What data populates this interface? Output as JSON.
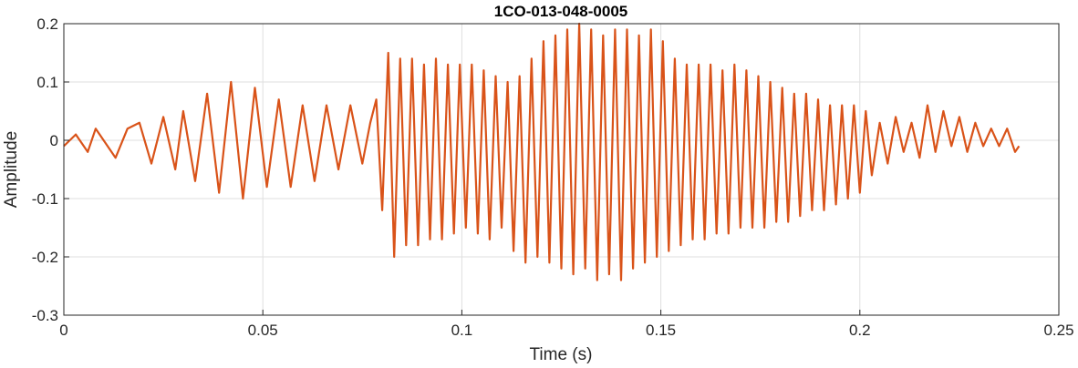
{
  "chart_data": {
    "type": "line",
    "title": "1CO-013-048-0005",
    "xlabel": "Time (s)",
    "ylabel": "Amplitude",
    "xlim": [
      0,
      0.25
    ],
    "ylim": [
      -0.3,
      0.2
    ],
    "grid": true,
    "line_color": "#D95319",
    "xticks": [
      0,
      0.05,
      0.1,
      0.15,
      0.2,
      0.25
    ],
    "xtick_labels": [
      "0",
      "0.05",
      "0.1",
      "0.15",
      "0.2",
      "0.25"
    ],
    "yticks": [
      -0.3,
      -0.2,
      -0.1,
      0,
      0.1,
      0.2
    ],
    "ytick_labels": [
      "-0.3",
      "-0.2",
      "-0.1",
      "0",
      "0.1",
      "0.2"
    ],
    "series": [
      {
        "values_description_free": true,
        "x": [
          0.0,
          0.003,
          0.006,
          0.008,
          0.01,
          0.013,
          0.016,
          0.019,
          0.022,
          0.025,
          0.028,
          0.03,
          0.033,
          0.036,
          0.039,
          0.042,
          0.045,
          0.048,
          0.051,
          0.054,
          0.057,
          0.06,
          0.063,
          0.066,
          0.069,
          0.072,
          0.075,
          0.077,
          0.0785,
          0.08,
          0.0815,
          0.083,
          0.0845,
          0.086,
          0.0875,
          0.089,
          0.0905,
          0.092,
          0.0935,
          0.095,
          0.0965,
          0.098,
          0.0995,
          0.101,
          0.1025,
          0.104,
          0.1055,
          0.107,
          0.1085,
          0.11,
          0.1115,
          0.113,
          0.1145,
          0.116,
          0.1175,
          0.119,
          0.1205,
          0.122,
          0.1235,
          0.125,
          0.1265,
          0.128,
          0.1295,
          0.131,
          0.1325,
          0.134,
          0.1355,
          0.137,
          0.1385,
          0.14,
          0.1415,
          0.143,
          0.1445,
          0.146,
          0.1475,
          0.149,
          0.1505,
          0.152,
          0.1535,
          0.155,
          0.1565,
          0.158,
          0.1595,
          0.161,
          0.1625,
          0.164,
          0.1655,
          0.167,
          0.1685,
          0.17,
          0.1715,
          0.173,
          0.1745,
          0.176,
          0.1775,
          0.179,
          0.1805,
          0.182,
          0.1835,
          0.185,
          0.1865,
          0.188,
          0.1895,
          0.191,
          0.1925,
          0.194,
          0.1955,
          0.197,
          0.1985,
          0.2,
          0.2015,
          0.203,
          0.205,
          0.207,
          0.209,
          0.211,
          0.213,
          0.215,
          0.217,
          0.219,
          0.221,
          0.223,
          0.225,
          0.227,
          0.229,
          0.231,
          0.233,
          0.235,
          0.237,
          0.239,
          0.24
        ],
        "y": [
          -0.01,
          0.01,
          -0.02,
          0.02,
          0.0,
          -0.03,
          0.02,
          0.03,
          -0.04,
          0.04,
          -0.05,
          0.05,
          -0.07,
          0.08,
          -0.09,
          0.1,
          -0.1,
          0.09,
          -0.08,
          0.07,
          -0.08,
          0.06,
          -0.07,
          0.06,
          -0.05,
          0.06,
          -0.04,
          0.03,
          0.07,
          -0.12,
          0.15,
          -0.2,
          0.14,
          -0.18,
          0.14,
          -0.18,
          0.13,
          -0.17,
          0.14,
          -0.17,
          0.13,
          -0.16,
          0.13,
          -0.15,
          0.13,
          -0.16,
          0.12,
          -0.17,
          0.11,
          -0.15,
          0.1,
          -0.19,
          0.11,
          -0.21,
          0.14,
          -0.2,
          0.17,
          -0.21,
          0.18,
          -0.22,
          0.19,
          -0.23,
          0.2,
          -0.22,
          0.19,
          -0.24,
          0.18,
          -0.23,
          0.19,
          -0.24,
          0.19,
          -0.22,
          0.18,
          -0.21,
          0.19,
          -0.2,
          0.17,
          -0.19,
          0.14,
          -0.18,
          0.13,
          -0.17,
          0.13,
          -0.17,
          0.13,
          -0.16,
          0.12,
          -0.16,
          0.13,
          -0.15,
          0.12,
          -0.15,
          0.11,
          -0.15,
          0.1,
          -0.14,
          0.09,
          -0.14,
          0.08,
          -0.13,
          0.08,
          -0.12,
          0.07,
          -0.12,
          0.06,
          -0.11,
          0.06,
          -0.1,
          0.06,
          -0.09,
          0.05,
          -0.06,
          0.03,
          -0.04,
          0.04,
          -0.02,
          0.03,
          -0.03,
          0.06,
          -0.02,
          0.05,
          -0.01,
          0.04,
          -0.02,
          0.03,
          -0.01,
          0.02,
          -0.01,
          0.02,
          -0.02,
          -0.01
        ]
      }
    ]
  }
}
